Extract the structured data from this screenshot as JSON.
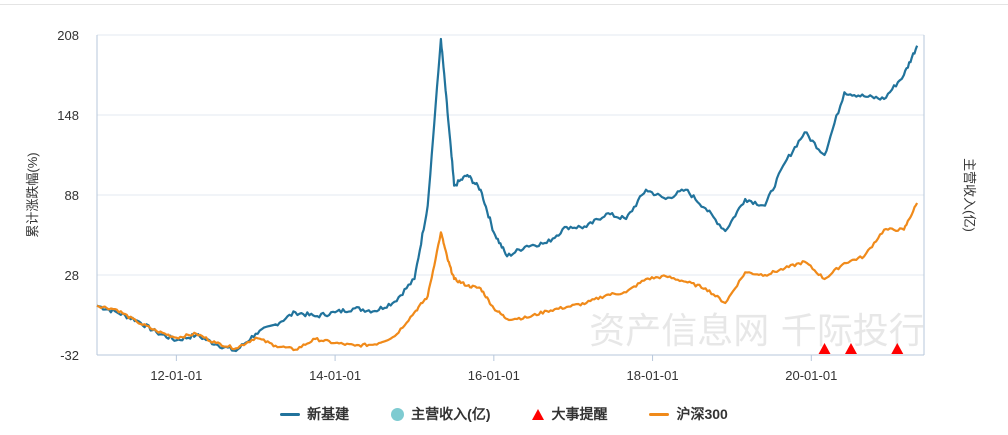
{
  "chart_data": {
    "type": "line",
    "ylabel_left": "累计涨跌幅(%)",
    "ylabel_right": "主营收入(亿)",
    "ylim": [
      -32,
      208
    ],
    "yticks": [
      "208",
      "148",
      "88",
      "28",
      "-32"
    ],
    "xticks": [
      "12-01-01",
      "14-01-01",
      "16-01-01",
      "18-01-01",
      "20-01-01"
    ],
    "watermark": "资产信息网 千际投行",
    "legend_position": "bottom",
    "grid": true,
    "series": [
      {
        "name": "新基建",
        "color": "#21739c",
        "x": [
          "2011-01",
          "2011-04",
          "2011-07",
          "2011-10",
          "2012-01",
          "2012-04",
          "2012-07",
          "2012-10",
          "2013-01",
          "2013-04",
          "2013-07",
          "2013-10",
          "2014-01",
          "2014-04",
          "2014-07",
          "2014-10",
          "2015-01",
          "2015-03",
          "2015-05",
          "2015-06",
          "2015-07",
          "2015-09",
          "2015-11",
          "2016-01",
          "2016-03",
          "2016-06",
          "2016-09",
          "2016-12",
          "2017-03",
          "2017-06",
          "2017-09",
          "2017-12",
          "2018-03",
          "2018-06",
          "2018-09",
          "2018-12",
          "2019-03",
          "2019-06",
          "2019-09",
          "2019-12",
          "2020-03",
          "2020-06",
          "2020-09",
          "2020-12",
          "2021-03",
          "2021-05"
        ],
        "values": [
          5,
          0,
          -6,
          -15,
          -21,
          -17,
          -24,
          -29,
          -16,
          -9,
          0,
          -3,
          0,
          3,
          1,
          8,
          25,
          80,
          205,
          150,
          95,
          103,
          92,
          60,
          42,
          50,
          52,
          64,
          64,
          74,
          70,
          92,
          85,
          92,
          78,
          61,
          85,
          80,
          112,
          135,
          118,
          165,
          162,
          160,
          178,
          200
        ]
      },
      {
        "name": "沪深300",
        "color": "#f08a1a",
        "x": [
          "2011-01",
          "2011-04",
          "2011-07",
          "2011-10",
          "2012-01",
          "2012-04",
          "2012-07",
          "2012-10",
          "2013-01",
          "2013-04",
          "2013-07",
          "2013-10",
          "2014-01",
          "2014-04",
          "2014-07",
          "2014-10",
          "2015-01",
          "2015-03",
          "2015-05",
          "2015-06",
          "2015-07",
          "2015-09",
          "2015-11",
          "2016-01",
          "2016-03",
          "2016-06",
          "2016-09",
          "2016-12",
          "2017-03",
          "2017-06",
          "2017-09",
          "2017-12",
          "2018-03",
          "2018-06",
          "2018-09",
          "2018-12",
          "2019-03",
          "2019-06",
          "2019-09",
          "2019-12",
          "2020-03",
          "2020-06",
          "2020-09",
          "2020-12",
          "2021-03",
          "2021-05"
        ],
        "values": [
          5,
          2,
          -7,
          -14,
          -19,
          -16,
          -23,
          -27,
          -19,
          -25,
          -28,
          -20,
          -23,
          -25,
          -24,
          -18,
          0,
          12,
          60,
          40,
          25,
          20,
          18,
          3,
          -5,
          -4,
          1,
          4,
          7,
          13,
          15,
          25,
          27,
          23,
          18,
          7,
          30,
          28,
          33,
          38,
          25,
          37,
          42,
          62,
          62,
          82
        ]
      }
    ],
    "markers": {
      "name": "大事提醒",
      "color": "#ff0000",
      "x": [
        "2020-03",
        "2020-07",
        "2021-02"
      ]
    }
  },
  "legend": [
    {
      "key": "xinjijian",
      "label": "新基建",
      "color": "#21739c",
      "shape": "line"
    },
    {
      "key": "income",
      "label": "主营收入(亿)",
      "color": "#7ecbd1",
      "shape": "dot"
    },
    {
      "key": "events",
      "label": "大事提醒",
      "color": "#ff0000",
      "shape": "triangle"
    },
    {
      "key": "hs300",
      "label": "沪深300",
      "color": "#f08a1a",
      "shape": "line"
    }
  ]
}
